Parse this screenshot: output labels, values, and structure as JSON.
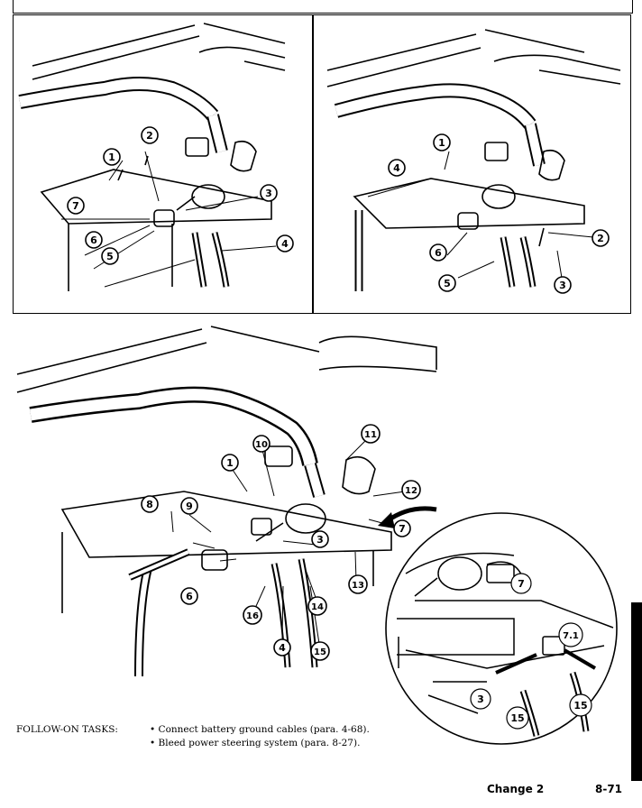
{
  "figure_top_left": {
    "callouts": [
      "1",
      "2",
      "3",
      "4",
      "5",
      "6",
      "7"
    ]
  },
  "figure_top_right": {
    "callouts": [
      "1",
      "2",
      "3",
      "4",
      "5",
      "6"
    ]
  },
  "figure_bottom": {
    "callouts": [
      "1",
      "3",
      "4",
      "6",
      "7",
      "8",
      "9",
      "10",
      "11",
      "12",
      "13",
      "14",
      "15",
      "16"
    ]
  },
  "detail_inset": {
    "callouts": [
      "7",
      "7.1",
      "3",
      "15",
      "15"
    ]
  },
  "follow_on": {
    "heading": "FOLLOW-ON TASKS:",
    "items": [
      "• Connect battery ground cables (para. 4-68).",
      "• Bleed power steering system (para. 8-27)."
    ]
  },
  "footer": {
    "change": "Change 2",
    "page": "8-71"
  },
  "colors": {
    "ink": "#000000",
    "paper": "#ffffff",
    "hatch": "#222222"
  }
}
